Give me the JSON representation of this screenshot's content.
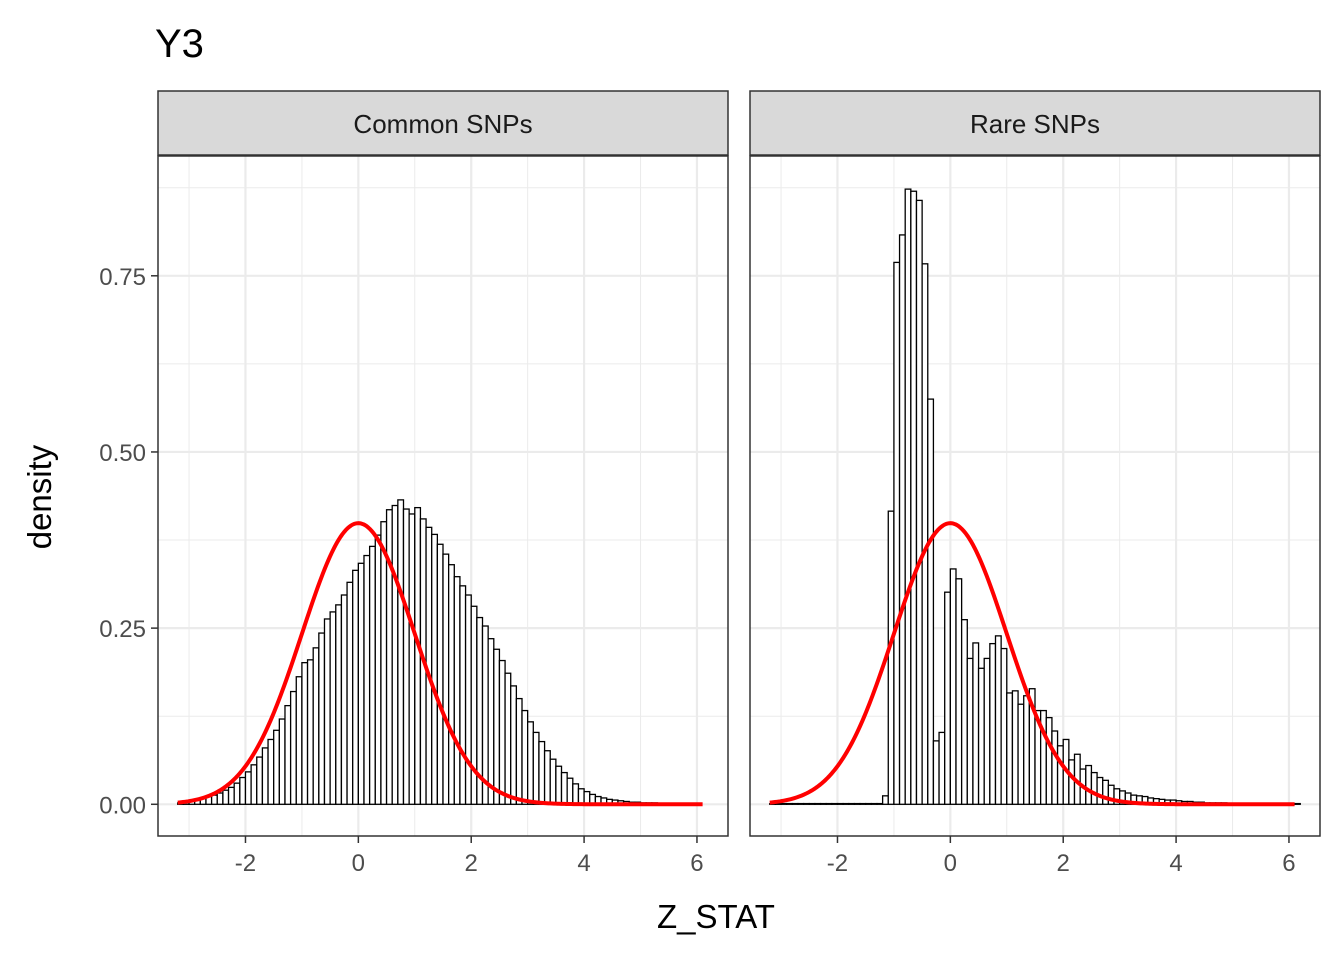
{
  "chart_data": {
    "type": "histogram",
    "title": "Y3",
    "xlabel": "Z_STAT",
    "ylabel": "density",
    "xlim": [
      -3.55,
      6.55
    ],
    "ylim": [
      -0.045,
      0.92
    ],
    "x_ticks": [
      -2,
      0,
      2,
      4,
      6
    ],
    "x_tick_labels": [
      "-2",
      "0",
      "2",
      "4",
      "6"
    ],
    "y_ticks": [
      0,
      0.25,
      0.5,
      0.75
    ],
    "y_tick_labels": [
      "0.00",
      "0.25",
      "0.50",
      "0.75"
    ],
    "grid": true,
    "colors": {
      "panel_border": "#333333",
      "grid_major": "#ebebeb",
      "strip_fill": "#d9d9d9",
      "bar_fill": "#ffffff",
      "bar_stroke": "#000000",
      "curve": "#ff0000"
    },
    "overlay": {
      "name": "standard normal density",
      "mean": 0,
      "sd": 1,
      "x_range": [
        -3.2,
        6.1
      ]
    },
    "panels": [
      {
        "label": "Common SNPs",
        "bin_start": -3.2,
        "bin_width": 0.1,
        "densities": [
          0.002,
          0.004,
          0.005,
          0.007,
          0.009,
          0.011,
          0.013,
          0.016,
          0.02,
          0.024,
          0.03,
          0.038,
          0.046,
          0.056,
          0.067,
          0.08,
          0.092,
          0.105,
          0.121,
          0.14,
          0.16,
          0.181,
          0.201,
          0.205,
          0.222,
          0.243,
          0.263,
          0.273,
          0.283,
          0.297,
          0.315,
          0.332,
          0.342,
          0.353,
          0.366,
          0.382,
          0.401,
          0.418,
          0.424,
          0.432,
          0.419,
          0.412,
          0.421,
          0.405,
          0.393,
          0.383,
          0.369,
          0.355,
          0.34,
          0.323,
          0.31,
          0.297,
          0.281,
          0.265,
          0.253,
          0.235,
          0.22,
          0.204,
          0.186,
          0.168,
          0.15,
          0.133,
          0.117,
          0.102,
          0.089,
          0.076,
          0.064,
          0.054,
          0.045,
          0.037,
          0.029,
          0.022,
          0.018,
          0.014,
          0.011,
          0.009,
          0.007,
          0.006,
          0.005,
          0.004,
          0.003,
          0.003,
          0.002,
          0.002,
          0.002,
          0.001,
          0.001,
          0.001,
          0.001,
          0.001,
          0.001,
          0.001,
          0,
          0,
          0,
          0,
          0,
          0,
          0,
          0,
          0,
          0,
          0,
          0,
          0,
          0,
          0,
          0,
          0,
          0,
          0,
          0,
          0,
          0,
          0,
          0,
          0,
          0,
          0,
          0,
          0,
          0,
          0,
          0,
          0,
          0,
          0,
          0,
          0,
          0,
          0,
          0,
          0,
          0,
          0,
          0,
          0,
          0,
          0,
          0,
          0,
          0,
          0,
          0,
          0,
          0,
          0,
          0,
          0,
          0,
          0,
          0,
          0,
          0,
          0,
          0,
          0
        ]
      },
      {
        "label": "Rare SNPs",
        "bin_start": -3.2,
        "bin_width": 0.1,
        "densities": [
          0.001,
          0.001,
          0.001,
          0.001,
          0.001,
          0.001,
          0.001,
          0.001,
          0.001,
          0.001,
          0.001,
          0.001,
          0.001,
          0.001,
          0.001,
          0.001,
          0.001,
          0.001,
          0.001,
          0.001,
          0.012,
          0.416,
          0.769,
          0.808,
          0.873,
          0.87,
          0.857,
          0.767,
          0.575,
          0.09,
          0.102,
          0.301,
          0.334,
          0.32,
          0.262,
          0.207,
          0.229,
          0.193,
          0.207,
          0.228,
          0.239,
          0.221,
          0.158,
          0.161,
          0.142,
          0.154,
          0.164,
          0.133,
          0.133,
          0.123,
          0.104,
          0.083,
          0.092,
          0.063,
          0.071,
          0.05,
          0.055,
          0.045,
          0.038,
          0.034,
          0.027,
          0.022,
          0.019,
          0.016,
          0.013,
          0.012,
          0.011,
          0.009,
          0.008,
          0.007,
          0.006,
          0.006,
          0.005,
          0.004,
          0.004,
          0.003,
          0.003,
          0.002,
          0.002,
          0.002,
          0.002,
          0.001,
          0.001,
          0.001,
          0.001,
          0.001,
          0.001,
          0.001,
          0.001,
          0.001,
          0.001,
          0.001,
          0.001,
          0.001
        ]
      }
    ]
  }
}
